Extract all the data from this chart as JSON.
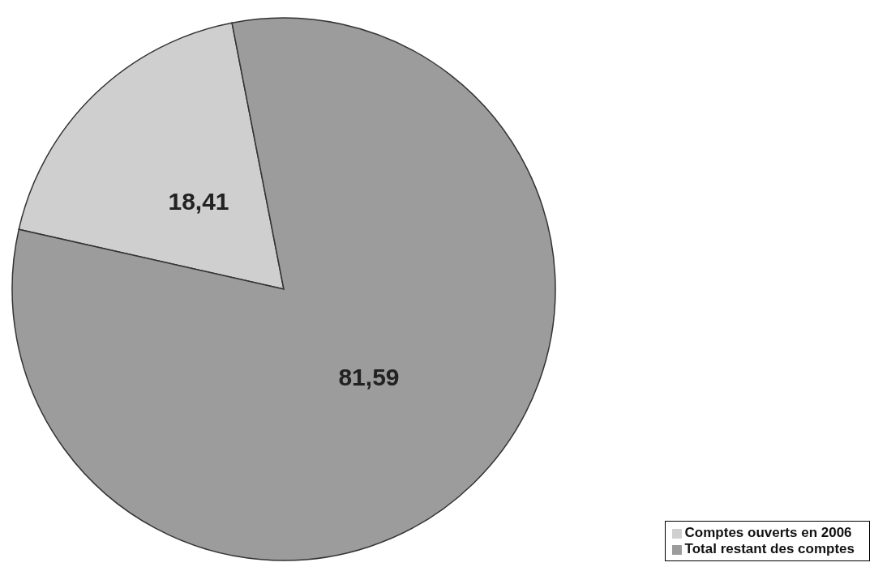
{
  "chart_data": {
    "type": "pie",
    "categories": [
      "Comptes ouverts en 2006",
      "Total restant des comptes"
    ],
    "values": [
      18.41,
      81.59
    ],
    "value_labels": [
      "18,41",
      "81,59"
    ],
    "colors": [
      "#cfcfcf",
      "#9c9c9c"
    ],
    "legend": "bottom right"
  }
}
